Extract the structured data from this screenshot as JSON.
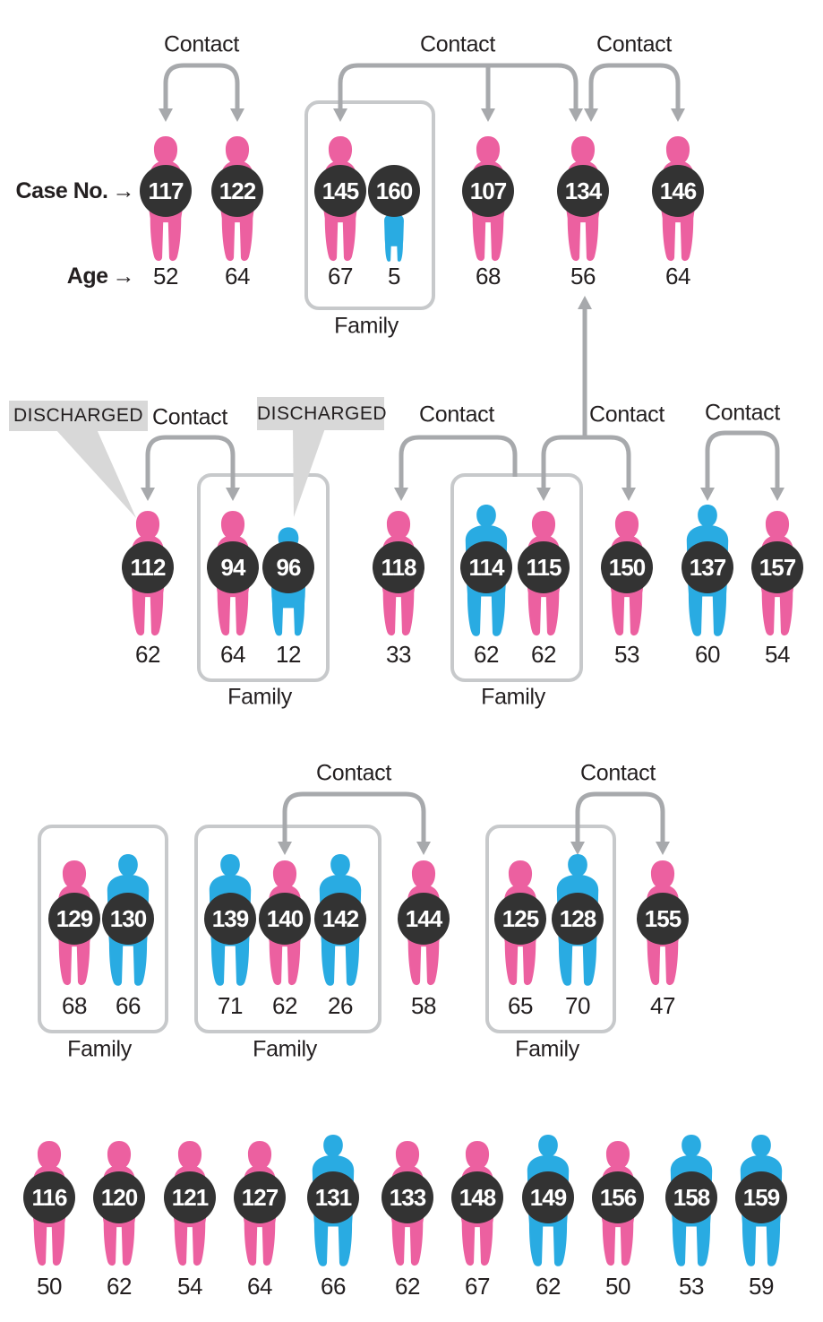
{
  "legend": {
    "case_no": "Case No.",
    "age": "Age",
    "arrow": "→"
  },
  "labels": {
    "contact": "Contact",
    "family": "Family",
    "discharged": "DISCHARGED"
  },
  "colors": {
    "female": "#ec60a0",
    "male": "#29abe2",
    "badge": "#333333",
    "connector": "#a7a9ac",
    "family_box": "#c7c9cb",
    "discharged_bg": "#d8d8d8",
    "text": "#231f20"
  },
  "people": [
    {
      "case_no": "117",
      "age": "52",
      "sex": "female"
    },
    {
      "case_no": "122",
      "age": "64",
      "sex": "female"
    },
    {
      "case_no": "145",
      "age": "67",
      "sex": "female"
    },
    {
      "case_no": "160",
      "age": "5",
      "sex": "male",
      "figure": "child"
    },
    {
      "case_no": "107",
      "age": "68",
      "sex": "female"
    },
    {
      "case_no": "134",
      "age": "56",
      "sex": "female"
    },
    {
      "case_no": "146",
      "age": "64",
      "sex": "female"
    },
    {
      "case_no": "112",
      "age": "62",
      "sex": "female"
    },
    {
      "case_no": "94",
      "age": "64",
      "sex": "female"
    },
    {
      "case_no": "96",
      "age": "12",
      "sex": "male",
      "figure": "teen"
    },
    {
      "case_no": "118",
      "age": "33",
      "sex": "female"
    },
    {
      "case_no": "114",
      "age": "62",
      "sex": "male"
    },
    {
      "case_no": "115",
      "age": "62",
      "sex": "female"
    },
    {
      "case_no": "150",
      "age": "53",
      "sex": "female"
    },
    {
      "case_no": "137",
      "age": "60",
      "sex": "male"
    },
    {
      "case_no": "157",
      "age": "54",
      "sex": "female"
    },
    {
      "case_no": "129",
      "age": "68",
      "sex": "female"
    },
    {
      "case_no": "130",
      "age": "66",
      "sex": "male"
    },
    {
      "case_no": "139",
      "age": "71",
      "sex": "male"
    },
    {
      "case_no": "140",
      "age": "62",
      "sex": "female"
    },
    {
      "case_no": "142",
      "age": "26",
      "sex": "male"
    },
    {
      "case_no": "144",
      "age": "58",
      "sex": "female"
    },
    {
      "case_no": "125",
      "age": "65",
      "sex": "female"
    },
    {
      "case_no": "128",
      "age": "70",
      "sex": "male"
    },
    {
      "case_no": "155",
      "age": "47",
      "sex": "female"
    },
    {
      "case_no": "116",
      "age": "50",
      "sex": "female"
    },
    {
      "case_no": "120",
      "age": "62",
      "sex": "female"
    },
    {
      "case_no": "121",
      "age": "54",
      "sex": "female"
    },
    {
      "case_no": "127",
      "age": "64",
      "sex": "female"
    },
    {
      "case_no": "131",
      "age": "66",
      "sex": "male"
    },
    {
      "case_no": "133",
      "age": "62",
      "sex": "female"
    },
    {
      "case_no": "148",
      "age": "67",
      "sex": "female"
    },
    {
      "case_no": "149",
      "age": "62",
      "sex": "male"
    },
    {
      "case_no": "156",
      "age": "50",
      "sex": "female"
    },
    {
      "case_no": "158",
      "age": "53",
      "sex": "male"
    },
    {
      "case_no": "159",
      "age": "59",
      "sex": "male"
    }
  ],
  "families": [
    {
      "members": [
        "145",
        "160"
      ]
    },
    {
      "members": [
        "94",
        "96"
      ]
    },
    {
      "members": [
        "114",
        "115"
      ]
    },
    {
      "members": [
        "129",
        "130"
      ]
    },
    {
      "members": [
        "139",
        "140",
        "142"
      ]
    },
    {
      "members": [
        "125",
        "128"
      ]
    }
  ],
  "contacts": [
    {
      "between": [
        "117",
        "122"
      ]
    },
    {
      "between": [
        "145",
        "107",
        "134"
      ]
    },
    {
      "between": [
        "134",
        "146"
      ]
    },
    {
      "between": [
        "112",
        "94"
      ]
    },
    {
      "between": [
        "118",
        "family-114-115"
      ]
    },
    {
      "between": [
        "115",
        "150"
      ],
      "up_arrow_to": "134"
    },
    {
      "between": [
        "137",
        "157"
      ]
    },
    {
      "between": [
        "140",
        "144"
      ]
    },
    {
      "between": [
        "128",
        "155"
      ]
    }
  ],
  "discharged_cases": [
    "112",
    "96"
  ]
}
